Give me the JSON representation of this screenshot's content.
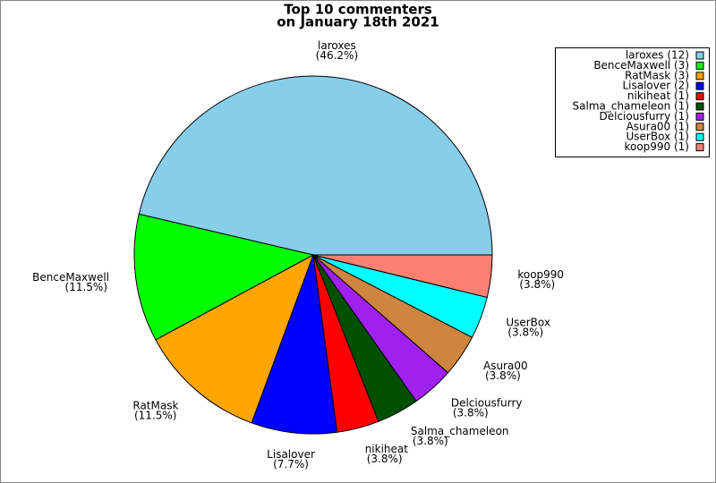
{
  "chart_data": {
    "type": "pie",
    "title": "Top 10 commenters",
    "subtitle": "on January 18th 2021",
    "categories": [
      "laroxes",
      "BenceMaxwell",
      "RatMask",
      "Lisalover",
      "nikiheat",
      "Salma_chameleon",
      "Delciousfurry",
      "Asura00",
      "UserBox",
      "koop990"
    ],
    "values": [
      46.2,
      11.5,
      11.5,
      7.7,
      3.8,
      3.8,
      3.8,
      3.8,
      3.8,
      3.8
    ],
    "value_labels": [
      "(46.2%)",
      "(11.5%)",
      "(11.5%)",
      "(7.7%)",
      "(3.8%)",
      "(3.8%)",
      "(3.8%)",
      "(3.8%)",
      "(3.8%)",
      "(3.8%)"
    ],
    "colors": [
      "#87ceeb",
      "#00ff00",
      "#ffa500",
      "#0000ff",
      "#ff0000",
      "#005000",
      "#a020f0",
      "#cd853f",
      "#00ffff",
      "#fa8072"
    ],
    "legend_labels": [
      "laroxes (12)",
      "BenceMaxwell (3)",
      "RatMask (3)",
      "Lisalover (2)",
      "nikiheat (1)",
      "Salma_chameleon (1)",
      "Delciousfurry (1)",
      "Asura00 (1)",
      "UserBox (1)",
      "koop990 (1)"
    ],
    "legend": "upper right"
  }
}
